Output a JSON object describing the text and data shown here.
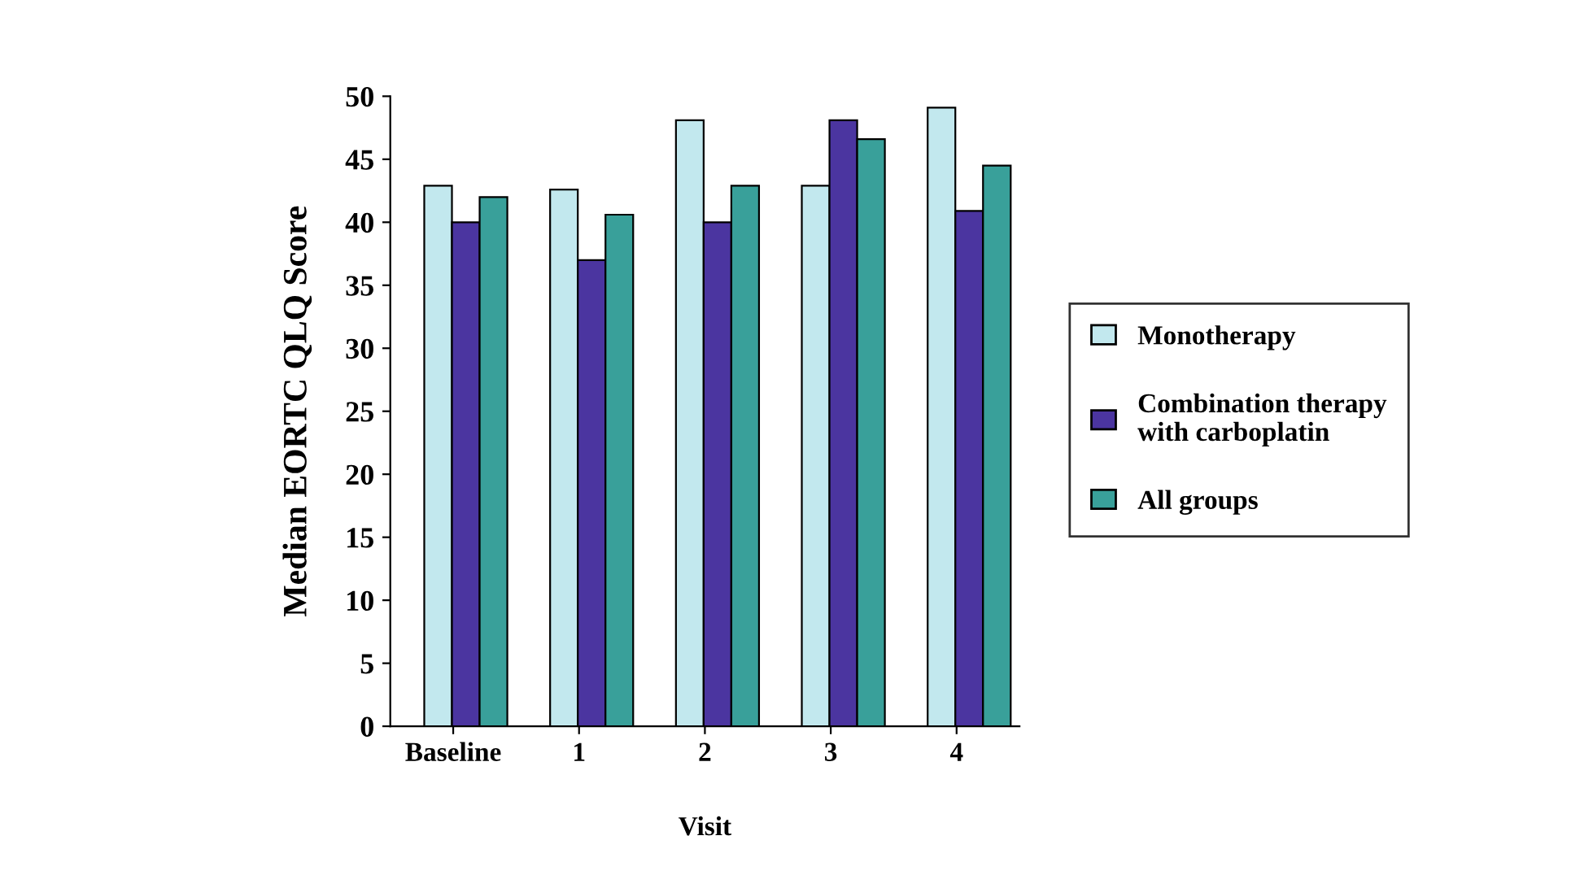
{
  "chart_data": {
    "type": "bar",
    "xlabel": "Visit",
    "ylabel": "Median EORTC QLQ Score",
    "categories": [
      "Baseline",
      "1",
      "2",
      "3",
      "4"
    ],
    "series": [
      {
        "name": "Monotherapy",
        "color": "#c2e8ee",
        "values": [
          42.9,
          42.6,
          48.1,
          42.9,
          49.1
        ]
      },
      {
        "name": "Combination therapy\nwith carboplatin",
        "color": "#4b35a0",
        "values": [
          40.0,
          37.0,
          40.0,
          48.1,
          40.9
        ]
      },
      {
        "name": "All groups",
        "color": "#39a09a",
        "values": [
          42.0,
          40.6,
          42.9,
          46.6,
          44.5
        ]
      }
    ],
    "ylim": [
      0,
      50
    ],
    "yticks": [
      0,
      5,
      10,
      15,
      20,
      25,
      30,
      35,
      40,
      45,
      50
    ],
    "grid": false,
    "legend": "right"
  }
}
